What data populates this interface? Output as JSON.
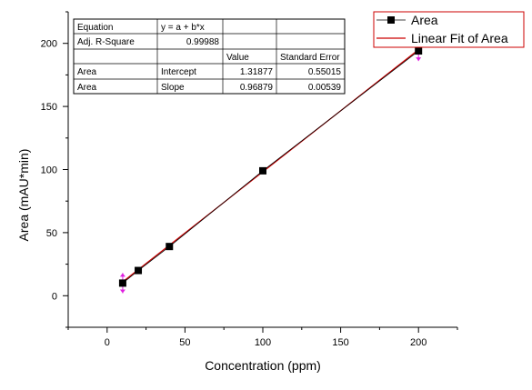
{
  "colors": {
    "marker": "#000000",
    "fit_line": "#cc0000",
    "error_bar": "#e020e0",
    "axis": "#000000",
    "legend_border": "#cc0000",
    "background": "#ffffff"
  },
  "chart_data": {
    "type": "scatter",
    "title": "",
    "xlabel": "Concentration (ppm)",
    "ylabel": "Area (mAU*min)",
    "xlim": [
      -25,
      225
    ],
    "ylim": [
      -25,
      225
    ],
    "xticks": [
      0,
      50,
      100,
      150,
      200
    ],
    "yticks": [
      0,
      50,
      100,
      150,
      200
    ],
    "grid": false,
    "legend_position": "top-right",
    "series": [
      {
        "name": "Area",
        "kind": "scatter",
        "marker": "square",
        "x": [
          10,
          20,
          40,
          100,
          200
        ],
        "y": [
          10,
          20,
          39,
          99,
          194
        ],
        "y_error": [
          8,
          0,
          0,
          0,
          8
        ]
      },
      {
        "name": "Linear Fit of Area",
        "kind": "line",
        "x": [
          10,
          200
        ],
        "y": [
          11,
          195
        ]
      }
    ],
    "stats_table": {
      "rows": [
        [
          "Equation",
          "y = a + b*x",
          "",
          ""
        ],
        [
          "Adj. R-Square",
          "0.99988",
          "",
          ""
        ],
        [
          "",
          "",
          "Value",
          "Standard Error"
        ],
        [
          "Area",
          "Intercept",
          "1.31877",
          "0.55015"
        ],
        [
          "Area",
          "Slope",
          "0.96879",
          "0.00539"
        ]
      ]
    }
  }
}
